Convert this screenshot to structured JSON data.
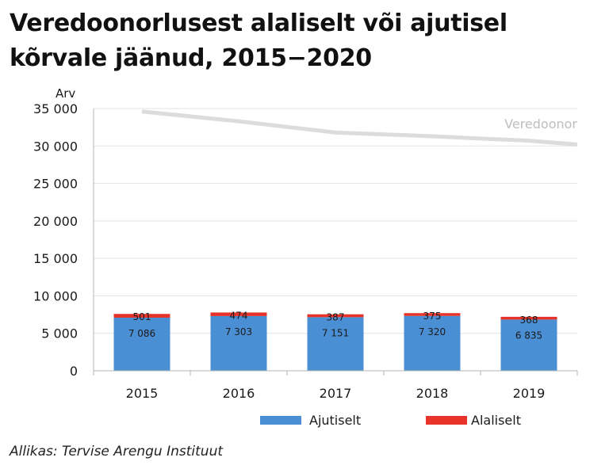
{
  "title": "Veredoonorlusest alaliselt või ajutisel kõrvale jäänud, 2015−2020",
  "source": "Allikas: Tervise Arengu Instituut",
  "chart_data": {
    "type": "bar",
    "stacked": true,
    "categories": [
      "2015",
      "2016",
      "2017",
      "2018",
      "2019"
    ],
    "series": [
      {
        "name": "Ajutiselt",
        "values": [
          7086,
          7303,
          7151,
          7320,
          6835
        ],
        "labels": [
          "7 086",
          "7 303",
          "7 151",
          "7 320",
          "6 835"
        ],
        "color": "#4a8fd4"
      },
      {
        "name": "Alaliselt",
        "values": [
          501,
          474,
          387,
          375,
          368
        ],
        "labels": [
          "501",
          "474",
          "387",
          "375",
          "368"
        ],
        "color": "#e8332a"
      }
    ],
    "line": {
      "name": "Veredoonor",
      "x": [
        "2015",
        "2016",
        "2017",
        "2018",
        "2019",
        "2020"
      ],
      "values": [
        34600,
        33300,
        31800,
        31300,
        30700,
        30200
      ],
      "color": "#dcdcdc"
    },
    "ylabel": "Arv",
    "ylim": [
      0,
      35000
    ],
    "yticks": [
      0,
      5000,
      10000,
      15000,
      20000,
      25000,
      30000,
      35000
    ],
    "ytick_labels": [
      "0",
      "5 000",
      "10 000",
      "15 000",
      "20 000",
      "25 000",
      "30 000",
      "35 000"
    ],
    "grid": true,
    "legend_position": "bottom"
  }
}
